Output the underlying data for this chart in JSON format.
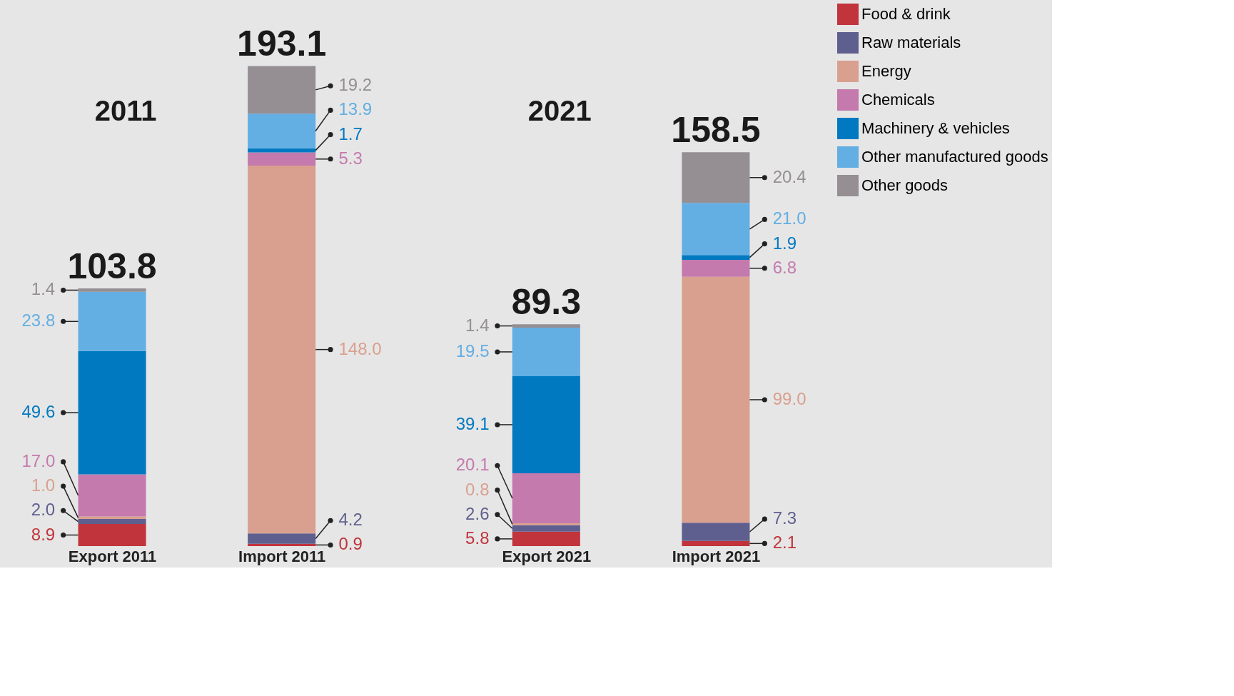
{
  "chart_data": {
    "type": "bar",
    "stacked": true,
    "categories": [
      "Export 2011",
      "Import 2011",
      "Export 2021",
      "Import 2021"
    ],
    "series": [
      {
        "name": "Food & drink",
        "color": "#c1343b",
        "values": [
          8.9,
          0.9,
          5.8,
          2.1
        ],
        "value_labels": [
          "8.9",
          "0.9",
          "5.8",
          "2.1"
        ]
      },
      {
        "name": "Raw materials",
        "color": "#5f5f8f",
        "values": [
          2.0,
          4.2,
          2.6,
          7.3
        ],
        "value_labels": [
          "2.0",
          "4.2",
          "2.6",
          "7.3"
        ]
      },
      {
        "name": "Energy",
        "color": "#d9a08f",
        "values": [
          1.0,
          148.0,
          0.8,
          99.0
        ],
        "value_labels": [
          "1.0",
          "148.0",
          "0.8",
          "99.0"
        ]
      },
      {
        "name": "Chemicals",
        "color": "#c47aad",
        "values": [
          17.0,
          5.3,
          20.1,
          6.8
        ],
        "value_labels": [
          "17.0",
          "5.3",
          "20.1",
          "6.8"
        ]
      },
      {
        "name": "Machinery & vehicles",
        "color": "#0079c1",
        "values": [
          49.6,
          1.7,
          39.1,
          1.9
        ],
        "value_labels": [
          "49.6",
          "1.7",
          "39.1",
          "1.9"
        ]
      },
      {
        "name": "Other manufactured goods",
        "color": "#63aee3",
        "values": [
          23.8,
          13.9,
          19.5,
          21.0
        ],
        "value_labels": [
          "23.8",
          "13.9",
          "19.5",
          "21.0"
        ]
      },
      {
        "name": "Other goods",
        "color": "#958f94",
        "values": [
          1.4,
          19.2,
          1.4,
          20.4
        ],
        "value_labels": [
          "1.4",
          "19.2",
          "1.4",
          "20.4"
        ]
      }
    ],
    "totals": [
      "103.8",
      "193.1",
      "89.3",
      "158.5"
    ],
    "annotations": [
      "2011",
      "2021"
    ],
    "legend": "right"
  }
}
